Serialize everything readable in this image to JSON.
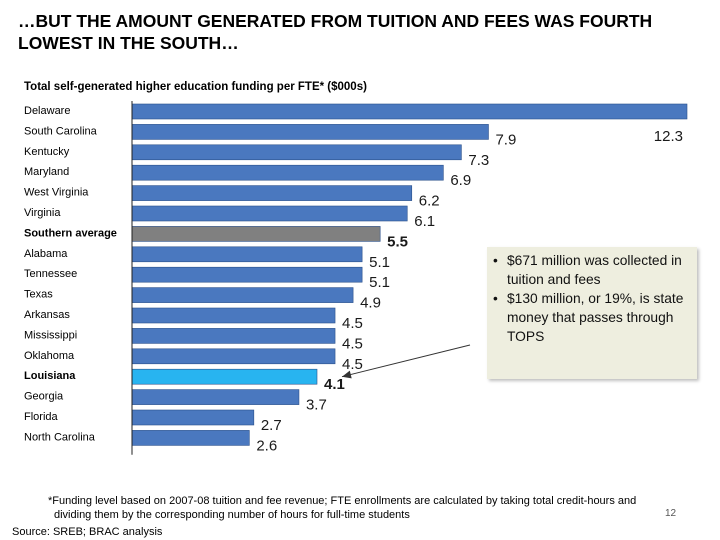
{
  "title": "…BUT THE AMOUNT GENERATED FROM TUITION AND FEES WAS FOURTH LOWEST IN THE SOUTH…",
  "colors": {
    "bar": "#4a78bf",
    "bar_edge": "#2a4f8a",
    "southern_average": "#808080",
    "louisiana": "#28b4f0",
    "axis": "#222222",
    "callout_bg": "#eeeedf"
  },
  "chart_data": {
    "type": "bar",
    "orientation": "horizontal",
    "title": "Total self-generated higher education funding per FTE* ($000s)",
    "categories": [
      "Delaware",
      "South Carolina",
      "Kentucky",
      "Maryland",
      "West Virginia",
      "Virginia",
      "Southern average",
      "Alabama",
      "Tennessee",
      "Texas",
      "Arkansas",
      "Mississippi",
      "Oklahoma",
      "Louisiana",
      "Georgia",
      "Florida",
      "North Carolina"
    ],
    "values": [
      12.3,
      7.9,
      7.3,
      6.9,
      6.2,
      6.1,
      5.5,
      5.1,
      5.1,
      4.9,
      4.5,
      4.5,
      4.5,
      4.1,
      3.7,
      2.7,
      2.6
    ],
    "data_labels": [
      "12.3",
      "7.9",
      "7.3",
      "6.9",
      "6.2",
      "6.1",
      "5.5",
      "5.1",
      "5.1",
      "4.9",
      "4.5",
      "4.5",
      "4.5",
      "4.1",
      "3.7",
      "2.7",
      "2.6"
    ],
    "highlight": {
      "Southern average": "gray",
      "Louisiana": "light-blue"
    },
    "bold_categories": [
      "Southern average",
      "Louisiana"
    ],
    "xlim": [
      0,
      12.3
    ]
  },
  "callout": {
    "items": [
      "$671 million was collected in tuition and fees",
      "$130 million, or 19%, is state money that passes through TOPS"
    ],
    "bullet": "•"
  },
  "footnote": {
    "line1": "*Funding level based on 2007-08 tuition and fee revenue; FTE enrollments are calculated by taking total credit-hours and",
    "line2": "dividing them by the corresponding number of hours for full-time students"
  },
  "page_number": "12",
  "source": "Source: SREB; BRAC analysis"
}
